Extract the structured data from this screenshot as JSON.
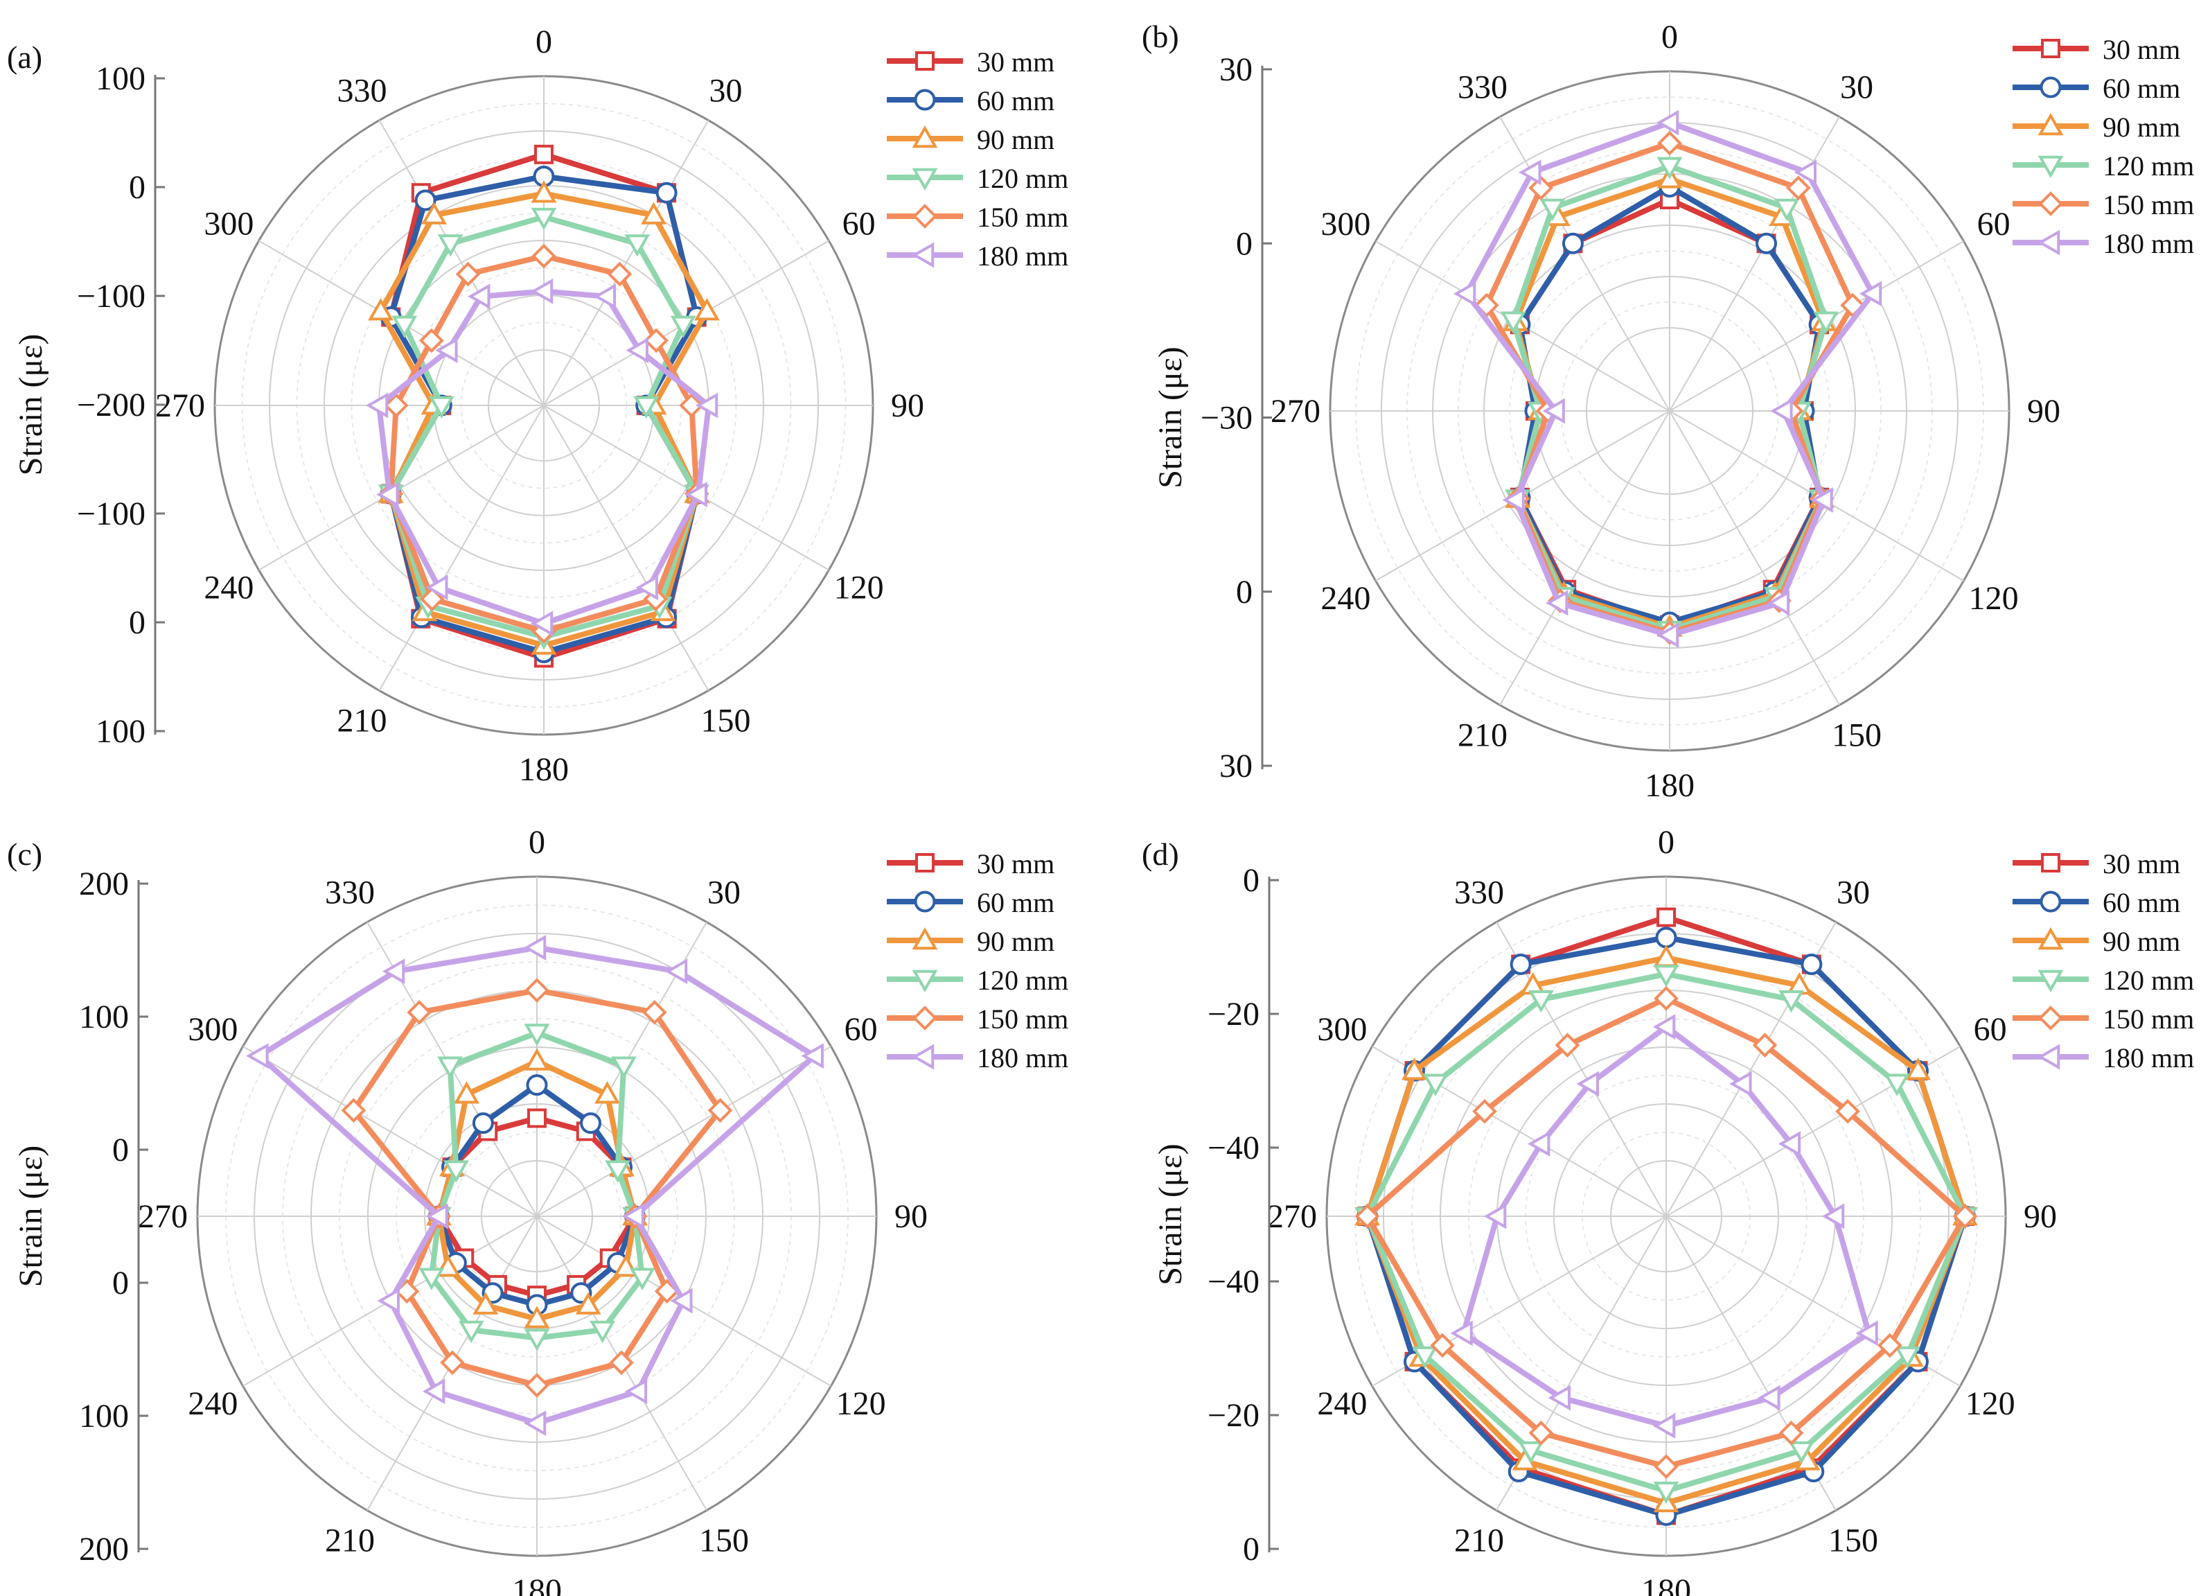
{
  "figure": {
    "series_colors": [
      "#d93a3a",
      "#2e5ea8",
      "#f0963c",
      "#8fd6ad",
      "#f38c5c",
      "#c6a3e8"
    ],
    "series_markers": [
      "square",
      "circle",
      "triangle-up",
      "triangle-down",
      "diamond",
      "triangle-left"
    ]
  },
  "chart_data": [
    {
      "type": "line",
      "coordinate_system": "polar",
      "panel_label": "(a)",
      "ylabel": "Strain (με)",
      "angle_unit": "degrees",
      "angle_tick_labels": [
        "0",
        "30",
        "60",
        "90",
        "120",
        "150",
        "180",
        "210",
        "240",
        "270",
        "300",
        "330"
      ],
      "radial_range": [
        -250,
        100
      ],
      "radial_tick_labels": [
        "100",
        "0",
        "−100",
        "−200",
        "−100",
        "0",
        "100"
      ],
      "legend_position": "top-right",
      "grid": true,
      "x": [
        0,
        30,
        60,
        90,
        120,
        150,
        180,
        210,
        240,
        270,
        300,
        330
      ],
      "series": [
        {
          "name": "30 mm",
          "values": [
            0,
            -7,
            -95,
            -190,
            -95,
            -6,
            2,
            -6,
            -95,
            -190,
            -95,
            -7
          ]
        },
        {
          "name": "60 mm",
          "values": [
            -28,
            -7,
            -95,
            -190,
            -95,
            -8,
            -5,
            -8,
            -95,
            -190,
            -95,
            -18
          ]
        },
        {
          "name": "90 mm",
          "values": [
            -50,
            -40,
            -80,
            -180,
            -95,
            -16,
            -14,
            -16,
            -95,
            -180,
            -80,
            -40
          ]
        },
        {
          "name": "120 mm",
          "values": [
            -80,
            -82,
            -115,
            -190,
            -95,
            -25,
            -25,
            -25,
            -95,
            -190,
            -115,
            -82
          ]
        },
        {
          "name": "150 mm",
          "values": [
            -130,
            -127,
            -155,
            -132,
            -95,
            -35,
            -32,
            -35,
            -95,
            -132,
            -155,
            -127
          ]
        },
        {
          "name": "180 mm",
          "values": [
            -175,
            -160,
            -180,
            -110,
            -93,
            -52,
            -42,
            -52,
            -93,
            -110,
            -180,
            -160
          ]
        }
      ]
    },
    {
      "type": "line",
      "coordinate_system": "polar",
      "panel_label": "(b)",
      "ylabel": "Strain (με)",
      "angle_unit": "degrees",
      "angle_tick_labels": [
        "0",
        "30",
        "60",
        "90",
        "120",
        "150",
        "180",
        "210",
        "240",
        "270",
        "300",
        "330"
      ],
      "radial_range": [
        -50,
        50
      ],
      "radial_tick_labels": [
        "30",
        "0",
        "−30",
        "0",
        "30"
      ],
      "legend_position": "top-right",
      "grid": true,
      "x": [
        0,
        30,
        60,
        90,
        120,
        150,
        180,
        210,
        240,
        270,
        300,
        330
      ],
      "series": [
        {
          "name": "30 mm",
          "values": [
            0,
            -7,
            -15,
            -30,
            -15,
            -2,
            1,
            -2,
            -15,
            -30,
            -15,
            -7
          ]
        },
        {
          "name": "60 mm",
          "values": [
            5,
            -7,
            -15,
            -30,
            -15,
            -1,
            0,
            -1,
            -15,
            -30,
            -15,
            -7
          ]
        },
        {
          "name": "90 mm",
          "values": [
            8,
            5,
            -13,
            -32,
            -14,
            0,
            2,
            0,
            -14,
            -32,
            -13,
            5
          ]
        },
        {
          "name": "120 mm",
          "values": [
            13,
            9,
            -12,
            -32,
            -14,
            1,
            3,
            1,
            -14,
            -32,
            -12,
            9
          ]
        },
        {
          "name": "150 mm",
          "values": [
            22,
            18,
            0,
            -35,
            -14,
            3,
            4,
            3,
            -14,
            -35,
            0,
            18
          ]
        },
        {
          "name": "180 mm",
          "values": [
            30,
            25,
            9,
            -38,
            -13,
            4,
            5,
            4,
            -13,
            -38,
            9,
            25
          ]
        }
      ]
    },
    {
      "type": "line",
      "coordinate_system": "polar",
      "panel_label": "(c)",
      "ylabel": "Strain (με)",
      "angle_unit": "degrees",
      "angle_tick_labels": [
        "0",
        "30",
        "60",
        "90",
        "120",
        "150",
        "180",
        "210",
        "240",
        "270",
        "300",
        "330"
      ],
      "radial_range": [
        -50,
        250
      ],
      "radial_tick_labels": [
        "200",
        "100",
        "0",
        "0",
        "100",
        "200"
      ],
      "legend_position": "top-right",
      "grid": true,
      "x": [
        0,
        30,
        60,
        90,
        120,
        150,
        180,
        210,
        240,
        270,
        300,
        330
      ],
      "series": [
        {
          "name": "30 mm",
          "values": [
            -5,
            -5,
            -5,
            -5,
            -20,
            -25,
            -25,
            -25,
            -20,
            -5,
            -5,
            -5
          ]
        },
        {
          "name": "60 mm",
          "values": [
            30,
            5,
            -5,
            -5,
            -10,
            -15,
            -15,
            -15,
            -10,
            -5,
            -5,
            5
          ]
        },
        {
          "name": "90 mm",
          "values": [
            55,
            40,
            -5,
            -5,
            0,
            0,
            0,
            0,
            0,
            -5,
            -5,
            40
          ]
        },
        {
          "name": "120 mm",
          "values": [
            85,
            75,
            -10,
            -5,
            20,
            30,
            20,
            30,
            20,
            -5,
            -10,
            75
          ]
        },
        {
          "name": "150 mm",
          "values": [
            130,
            140,
            115,
            -5,
            50,
            70,
            70,
            70,
            50,
            -5,
            115,
            140
          ]
        },
        {
          "name": "180 mm",
          "values": [
            175,
            190,
            230,
            -5,
            70,
            105,
            110,
            105,
            70,
            -5,
            230,
            190
          ]
        }
      ]
    },
    {
      "type": "line",
      "coordinate_system": "polar",
      "panel_label": "(d)",
      "ylabel": "Strain (με)",
      "angle_unit": "degrees",
      "angle_tick_labels": [
        "0",
        "30",
        "60",
        "90",
        "120",
        "150",
        "180",
        "210",
        "240",
        "270",
        "300",
        "330"
      ],
      "radial_range": [
        -60,
        10
      ],
      "radial_tick_labels": [
        "0",
        "−20",
        "−40",
        "−40",
        "−20",
        "0"
      ],
      "legend_position": "top-right",
      "grid": true,
      "x": [
        0,
        30,
        60,
        90,
        120,
        150,
        180,
        210,
        240,
        270,
        300,
        330
      ],
      "series": [
        {
          "name": "30 mm",
          "values": [
            0,
            -2,
            -2,
            0,
            -2,
            -2,
            0,
            -2,
            -2,
            0,
            -2,
            -2
          ]
        },
        {
          "name": "60 mm",
          "values": [
            -5,
            -2,
            -2,
            0,
            -2,
            -1,
            0,
            -1,
            -2,
            0,
            -2,
            -2
          ]
        },
        {
          "name": "90 mm",
          "values": [
            -10,
            -8,
            -2,
            0,
            -4,
            -4,
            -3,
            -4,
            -4,
            0,
            -2,
            -8
          ]
        },
        {
          "name": "120 mm",
          "values": [
            -14,
            -12,
            -8,
            0,
            -5,
            -7,
            -6,
            -7,
            -5,
            0,
            -8,
            -12
          ]
        },
        {
          "name": "150 mm",
          "values": [
            -20,
            -25,
            -22,
            0,
            -10,
            -12,
            -12,
            -12,
            -10,
            0,
            -22,
            -25
          ]
        },
        {
          "name": "180 mm",
          "values": [
            -27,
            -36,
            -38,
            -32,
            -16,
            -22,
            -22,
            -22,
            -16,
            -32,
            -38,
            -36
          ]
        }
      ]
    }
  ]
}
